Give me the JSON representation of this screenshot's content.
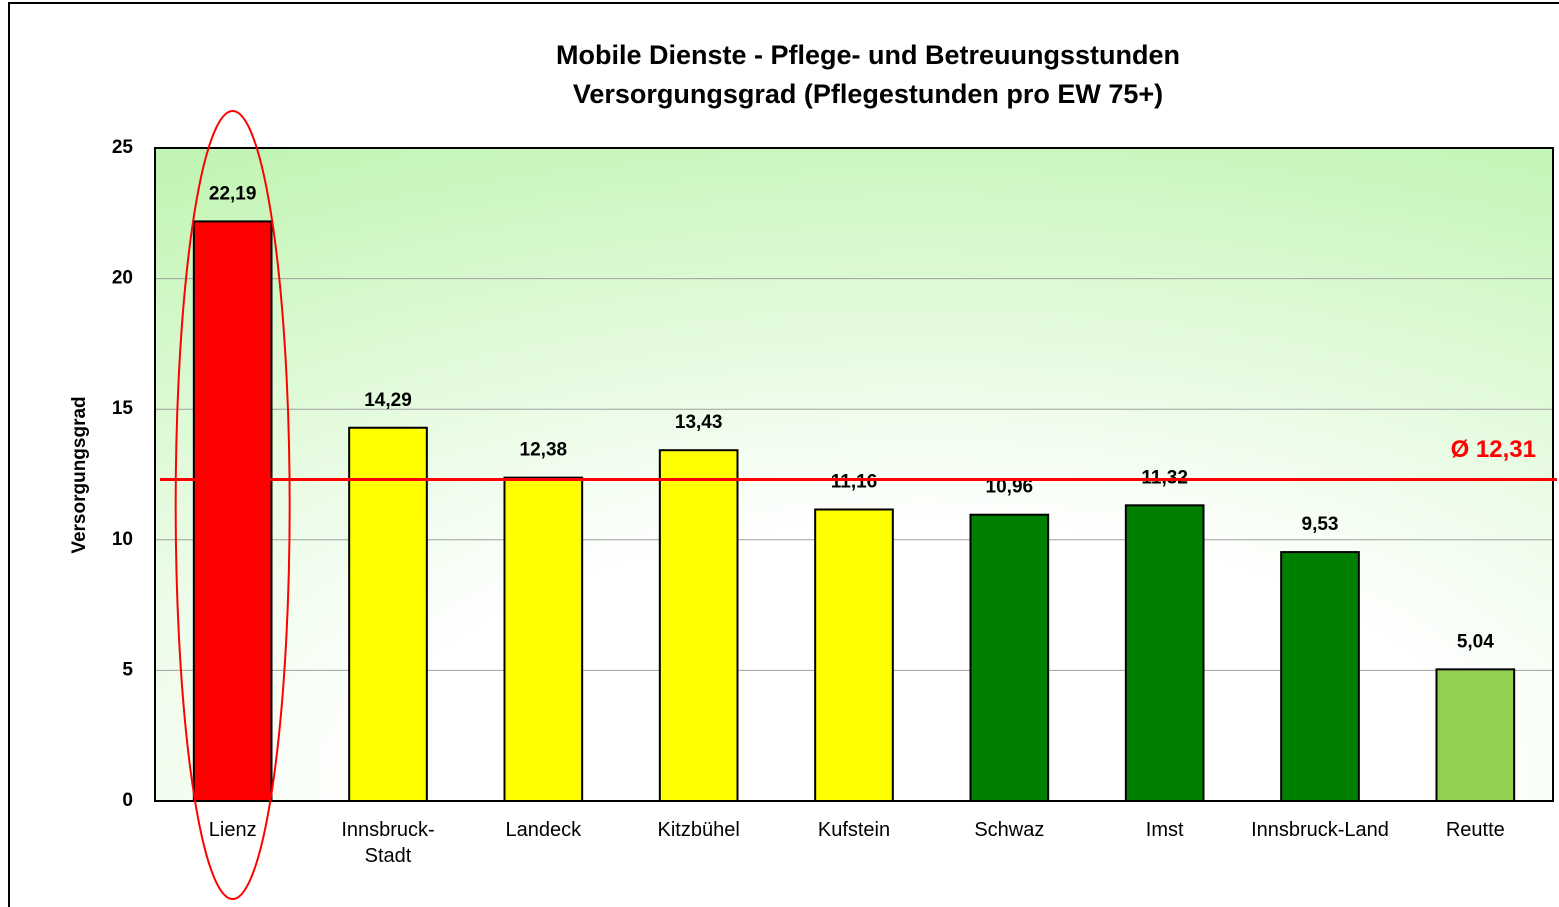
{
  "chart_data": {
    "type": "bar",
    "title": "Mobile Dienste - Pflege- und Betreuungsstunden",
    "subtitle": "Versorgungsgrad (Pflegestunden pro EW 75+)",
    "y_label": "Versorgungsgrad",
    "categories": [
      "Lienz",
      "Innsbruck-Stadt",
      "Landeck",
      "Kitzbühel",
      "Kufstein",
      "Schwaz",
      "Imst",
      "Innsbruck-Land",
      "Reutte"
    ],
    "values": [
      22.19,
      14.29,
      12.38,
      13.43,
      11.16,
      10.96,
      11.32,
      9.53,
      5.04
    ],
    "value_labels": [
      "22,19",
      "14,29",
      "12,38",
      "13,43",
      "11,16",
      "10,96",
      "11,32",
      "9,53",
      "5,04"
    ],
    "colors": [
      "#ff0000",
      "#ffff00",
      "#ffff00",
      "#ffff00",
      "#ffff00",
      "#008000",
      "#008000",
      "#008000",
      "#92d050"
    ],
    "average": {
      "value": 12.31,
      "label": "Ø 12,31",
      "color": "#ff0000"
    },
    "ylim": [
      0,
      25
    ],
    "yticks": [
      0,
      5,
      10,
      15,
      20,
      25
    ],
    "grid": true
  }
}
